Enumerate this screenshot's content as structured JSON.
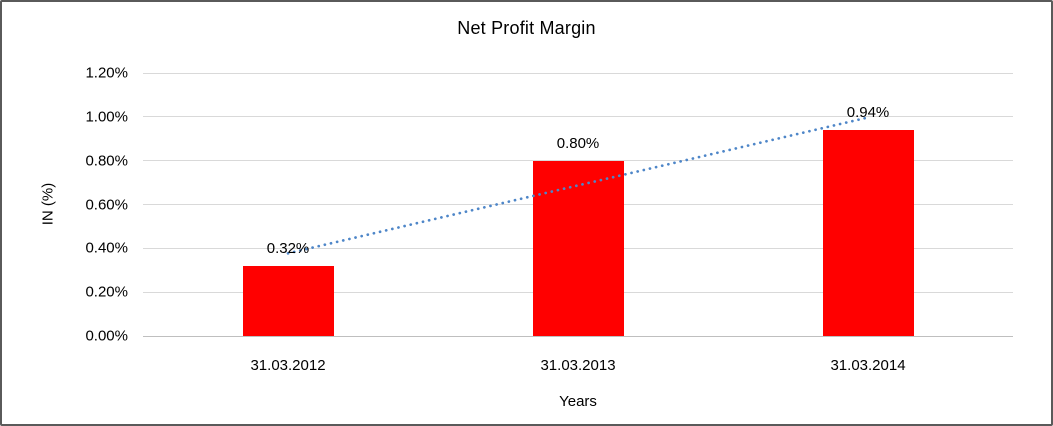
{
  "chart_data": {
    "type": "bar",
    "title": "Net Profit Margin",
    "xlabel": "Years",
    "ylabel": "IN (%)",
    "categories": [
      "31.03.2012",
      "31.03.2013",
      "31.03.2014"
    ],
    "values": [
      0.32,
      0.8,
      0.94
    ],
    "data_labels": [
      "0.32%",
      "0.80%",
      "0.94%"
    ],
    "ylim": [
      0,
      1.2
    ],
    "y_ticks": [
      {
        "value": 0,
        "label": "0.00%"
      },
      {
        "value": 0.2,
        "label": "0.20%"
      },
      {
        "value": 0.4,
        "label": "0.40%"
      },
      {
        "value": 0.6,
        "label": "0.60%"
      },
      {
        "value": 0.8,
        "label": "0.80%"
      },
      {
        "value": 1.0,
        "label": "1.00%"
      },
      {
        "value": 1.2,
        "label": "1.20%"
      }
    ],
    "grid": true,
    "legend": false,
    "bar_color": "#FF0000",
    "gridline_color": "#D9D9D9",
    "axis_line_color": "#BFBFBF",
    "trendline": {
      "type": "linear",
      "style": "dotted",
      "color": "#4E86C8",
      "start_value": 0.377,
      "end_value": 0.997
    }
  }
}
